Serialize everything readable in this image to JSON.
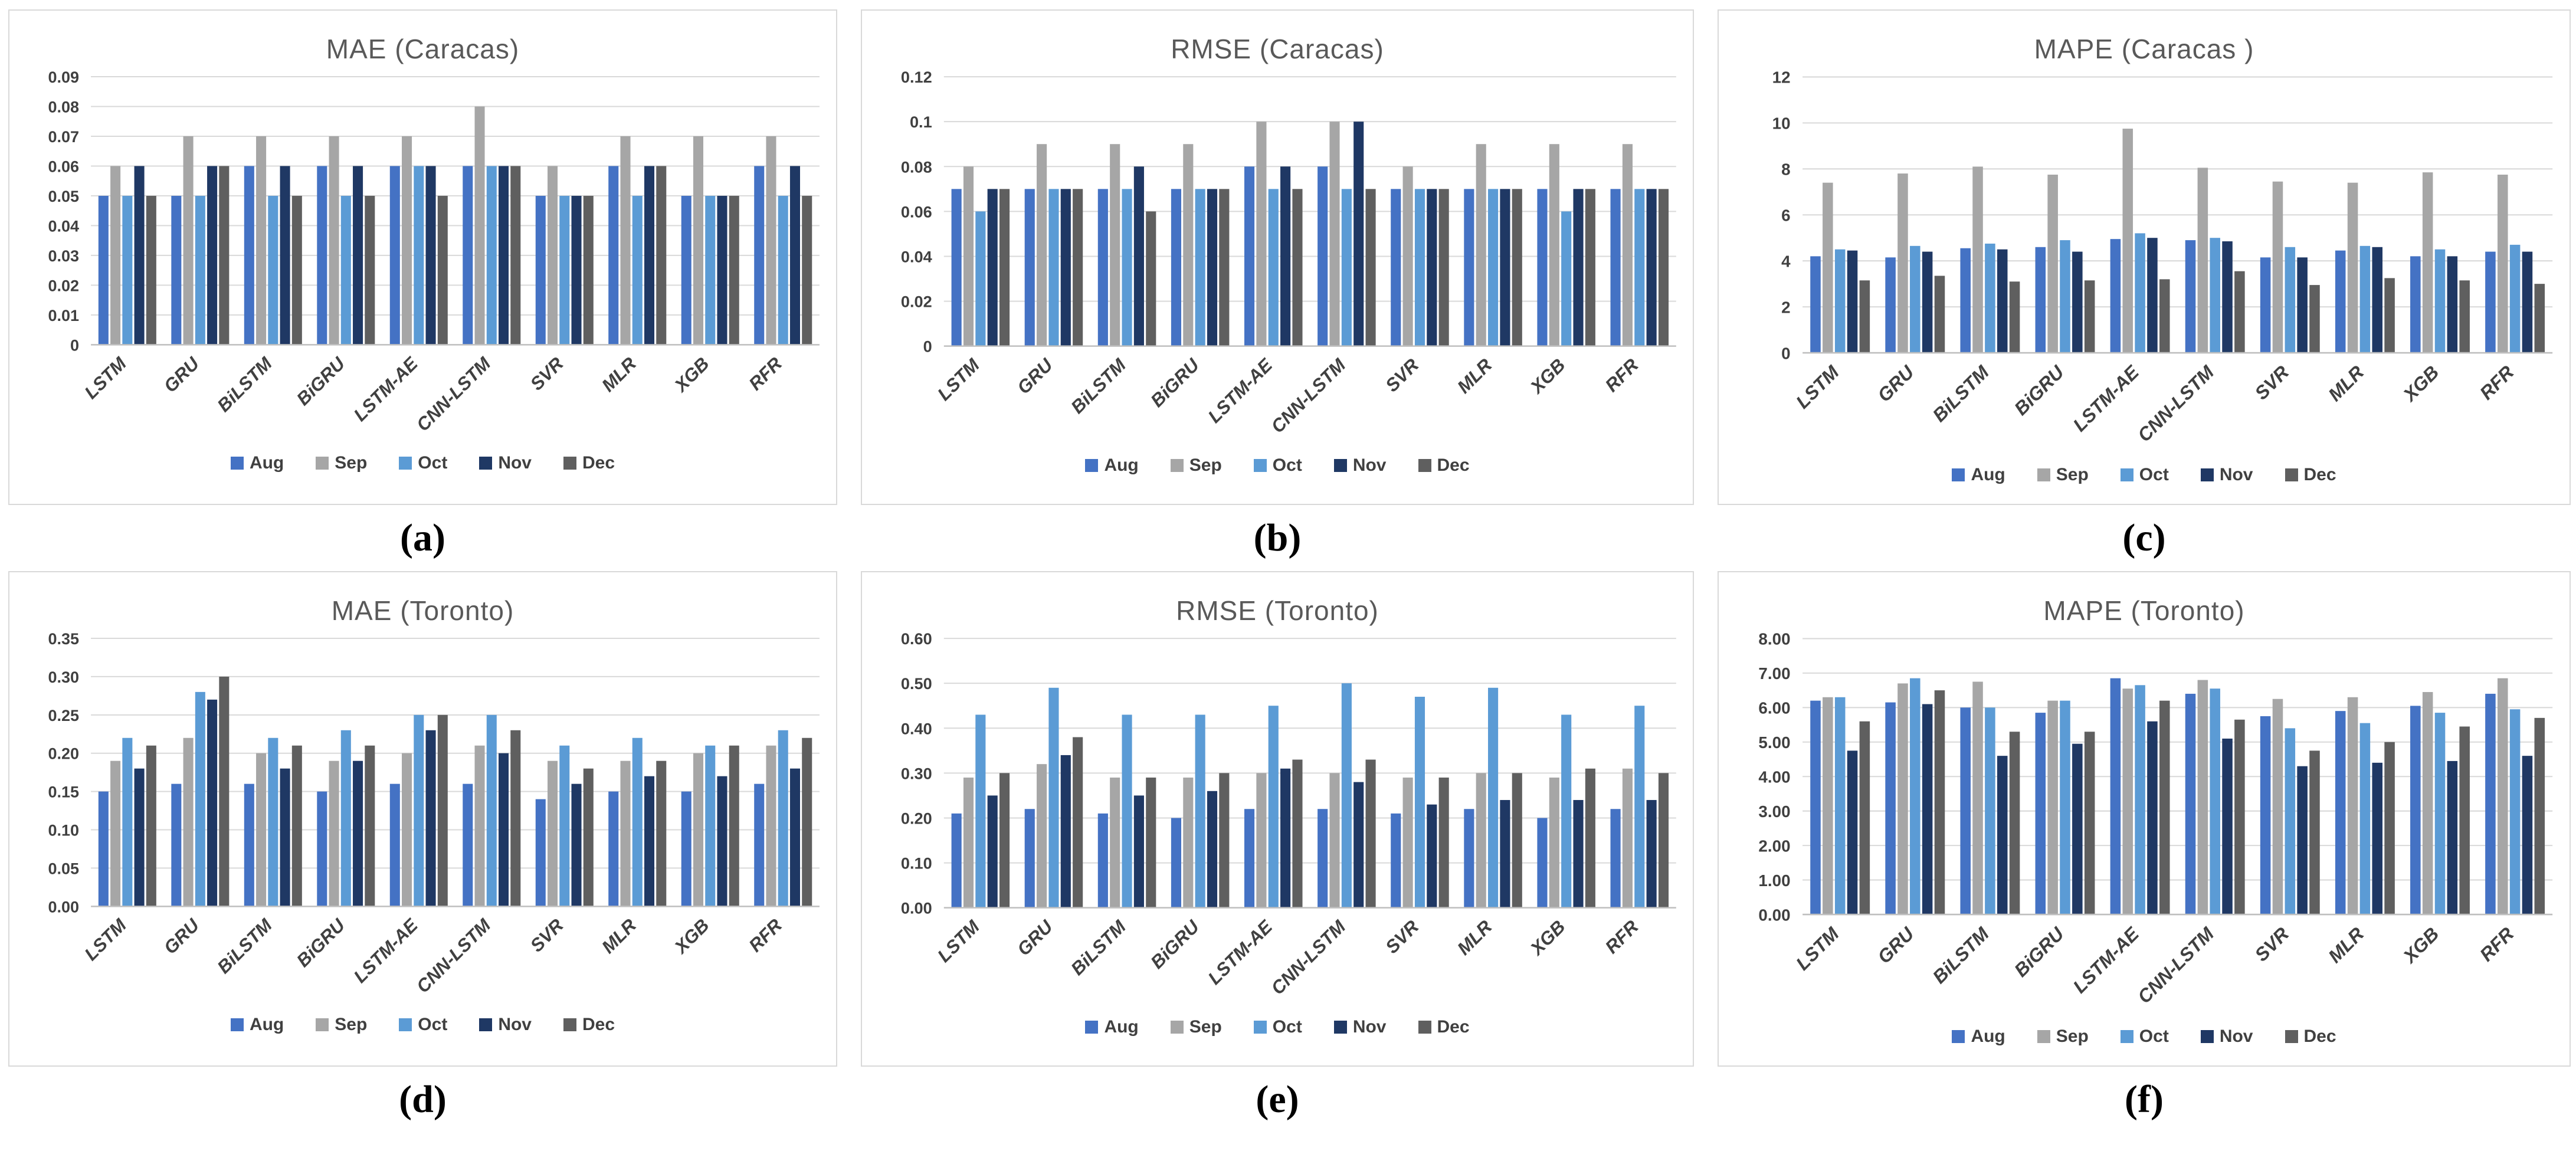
{
  "palette": {
    "Aug": "#4472C4",
    "Sep": "#A6A6A6",
    "Oct": "#5B9BD5",
    "Nov": "#1F3864",
    "Dec": "#5F5F5F"
  },
  "style": {
    "gridline_color": "#D9D9D9",
    "axis_color": "#BFBFBF",
    "title_color": "#595959",
    "label_color": "#404040",
    "border_color": "#D9D9D9"
  },
  "chart_data": [
    {
      "id": "mae-caracas",
      "type": "bar",
      "title": "MAE (Caracas)",
      "caption": "(a)",
      "xlabel": "",
      "ylabel": "",
      "grid": true,
      "legend_position": "bottom",
      "legend": [
        "Aug",
        "Sep",
        "Oct",
        "Nov",
        "Dec"
      ],
      "categories": [
        "LSTM",
        "GRU",
        "BiLSTM",
        "BiGRU",
        "LSTM-AE",
        "CNN-LSTM",
        "SVR",
        "MLR",
        "XGB",
        "RFR"
      ],
      "ylim": [
        0,
        0.09
      ],
      "ytick_values": [
        0,
        0.01,
        0.02,
        0.03,
        0.04,
        0.05,
        0.06,
        0.07,
        0.08,
        0.09
      ],
      "ytick_labels": [
        "0",
        "0.01",
        "0.02",
        "0.03",
        "0.04",
        "0.05",
        "0.06",
        "0.07",
        "0.08",
        "0.09"
      ],
      "series": [
        {
          "name": "Aug",
          "values": [
            0.05,
            0.05,
            0.06,
            0.06,
            0.06,
            0.06,
            0.05,
            0.06,
            0.05,
            0.06
          ]
        },
        {
          "name": "Sep",
          "values": [
            0.06,
            0.07,
            0.07,
            0.07,
            0.07,
            0.08,
            0.06,
            0.07,
            0.07,
            0.07
          ]
        },
        {
          "name": "Oct",
          "values": [
            0.05,
            0.05,
            0.05,
            0.05,
            0.06,
            0.06,
            0.05,
            0.05,
            0.05,
            0.05
          ]
        },
        {
          "name": "Nov",
          "values": [
            0.06,
            0.06,
            0.06,
            0.06,
            0.06,
            0.06,
            0.05,
            0.06,
            0.05,
            0.06
          ]
        },
        {
          "name": "Dec",
          "values": [
            0.05,
            0.06,
            0.05,
            0.05,
            0.05,
            0.06,
            0.05,
            0.06,
            0.05,
            0.05
          ]
        }
      ]
    },
    {
      "id": "rmse-caracas",
      "type": "bar",
      "title": "RMSE (Caracas)",
      "caption": "(b)",
      "xlabel": "",
      "ylabel": "",
      "grid": true,
      "legend_position": "bottom",
      "legend": [
        "Aug",
        "Sep",
        "Oct",
        "Nov",
        "Dec"
      ],
      "categories": [
        "LSTM",
        "GRU",
        "BiLSTM",
        "BiGRU",
        "LSTM-AE",
        "CNN-LSTM",
        "SVR",
        "MLR",
        "XGB",
        "RFR"
      ],
      "ylim": [
        0,
        0.12
      ],
      "ytick_values": [
        0,
        0.02,
        0.04,
        0.06,
        0.08,
        0.1,
        0.12
      ],
      "ytick_labels": [
        "0",
        "0.02",
        "0.04",
        "0.06",
        "0.08",
        "0.1",
        "0.12"
      ],
      "series": [
        {
          "name": "Aug",
          "values": [
            0.07,
            0.07,
            0.07,
            0.07,
            0.08,
            0.08,
            0.07,
            0.07,
            0.07,
            0.07
          ]
        },
        {
          "name": "Sep",
          "values": [
            0.08,
            0.09,
            0.09,
            0.09,
            0.1,
            0.1,
            0.08,
            0.09,
            0.09,
            0.09
          ]
        },
        {
          "name": "Oct",
          "values": [
            0.06,
            0.07,
            0.07,
            0.07,
            0.07,
            0.07,
            0.07,
            0.07,
            0.06,
            0.07
          ]
        },
        {
          "name": "Nov",
          "values": [
            0.07,
            0.07,
            0.08,
            0.07,
            0.08,
            0.1,
            0.07,
            0.07,
            0.07,
            0.07
          ]
        },
        {
          "name": "Dec",
          "values": [
            0.07,
            0.07,
            0.06,
            0.07,
            0.07,
            0.07,
            0.07,
            0.07,
            0.07,
            0.07
          ]
        }
      ]
    },
    {
      "id": "mape-caracas",
      "type": "bar",
      "title": "MAPE (Caracas )",
      "caption": "(c)",
      "xlabel": "",
      "ylabel": "",
      "grid": true,
      "legend_position": "bottom",
      "legend": [
        "Aug",
        "Sep",
        "Oct",
        "Nov",
        "Dec"
      ],
      "categories": [
        "LSTM",
        "GRU",
        "BiLSTM",
        "BiGRU",
        "LSTM-AE",
        "CNN-LSTM",
        "SVR",
        "MLR",
        "XGB",
        "RFR"
      ],
      "ylim": [
        0,
        12
      ],
      "ytick_values": [
        0,
        2,
        4,
        6,
        8,
        10,
        12
      ],
      "ytick_labels": [
        "0",
        "2",
        "4",
        "6",
        "8",
        "10",
        "12"
      ],
      "series": [
        {
          "name": "Aug",
          "values": [
            4.2,
            4.15,
            4.55,
            4.6,
            4.95,
            4.9,
            4.15,
            4.45,
            4.2,
            4.4
          ]
        },
        {
          "name": "Sep",
          "values": [
            7.4,
            7.8,
            8.1,
            7.75,
            9.75,
            8.05,
            7.45,
            7.4,
            7.85,
            7.75
          ]
        },
        {
          "name": "Oct",
          "values": [
            4.5,
            4.65,
            4.75,
            4.9,
            5.2,
            5.0,
            4.6,
            4.65,
            4.5,
            4.7
          ]
        },
        {
          "name": "Nov",
          "values": [
            4.45,
            4.4,
            4.5,
            4.4,
            5.0,
            4.85,
            4.15,
            4.6,
            4.2,
            4.4
          ]
        },
        {
          "name": "Dec",
          "values": [
            3.15,
            3.35,
            3.1,
            3.15,
            3.2,
            3.55,
            2.95,
            3.25,
            3.15,
            3.0
          ]
        }
      ]
    },
    {
      "id": "mae-toronto",
      "type": "bar",
      "title": "MAE (Toronto)",
      "caption": "(d)",
      "xlabel": "",
      "ylabel": "",
      "grid": true,
      "legend_position": "bottom",
      "legend": [
        "Aug",
        "Sep",
        "Oct",
        "Nov",
        "Dec"
      ],
      "categories": [
        "LSTM",
        "GRU",
        "BiLSTM",
        "BiGRU",
        "LSTM-AE",
        "CNN-LSTM",
        "SVR",
        "MLR",
        "XGB",
        "RFR"
      ],
      "ylim": [
        0,
        0.35
      ],
      "ytick_values": [
        0,
        0.05,
        0.1,
        0.15,
        0.2,
        0.25,
        0.3,
        0.35
      ],
      "ytick_labels": [
        "0.00",
        "0.05",
        "0.10",
        "0.15",
        "0.20",
        "0.25",
        "0.30",
        "0.35"
      ],
      "series": [
        {
          "name": "Aug",
          "values": [
            0.15,
            0.16,
            0.16,
            0.15,
            0.16,
            0.16,
            0.14,
            0.15,
            0.15,
            0.16
          ]
        },
        {
          "name": "Sep",
          "values": [
            0.19,
            0.22,
            0.2,
            0.19,
            0.2,
            0.21,
            0.19,
            0.19,
            0.2,
            0.21
          ]
        },
        {
          "name": "Oct",
          "values": [
            0.22,
            0.28,
            0.22,
            0.23,
            0.25,
            0.25,
            0.21,
            0.22,
            0.21,
            0.23
          ]
        },
        {
          "name": "Nov",
          "values": [
            0.18,
            0.27,
            0.18,
            0.19,
            0.23,
            0.2,
            0.16,
            0.17,
            0.17,
            0.18
          ]
        },
        {
          "name": "Dec",
          "values": [
            0.21,
            0.3,
            0.21,
            0.21,
            0.25,
            0.23,
            0.18,
            0.19,
            0.21,
            0.22
          ]
        }
      ]
    },
    {
      "id": "rmse-toronto",
      "type": "bar",
      "title": "RMSE (Toronto)",
      "caption": "(e)",
      "xlabel": "",
      "ylabel": "",
      "grid": true,
      "legend_position": "bottom",
      "legend": [
        "Aug",
        "Sep",
        "Oct",
        "Nov",
        "Dec"
      ],
      "categories": [
        "LSTM",
        "GRU",
        "BiLSTM",
        "BiGRU",
        "LSTM-AE",
        "CNN-LSTM",
        "SVR",
        "MLR",
        "XGB",
        "RFR"
      ],
      "ylim": [
        0,
        0.6
      ],
      "ytick_values": [
        0,
        0.1,
        0.2,
        0.3,
        0.4,
        0.5,
        0.6
      ],
      "ytick_labels": [
        "0.00",
        "0.10",
        "0.20",
        "0.30",
        "0.40",
        "0.50",
        "0.60"
      ],
      "series": [
        {
          "name": "Aug",
          "values": [
            0.21,
            0.22,
            0.21,
            0.2,
            0.22,
            0.22,
            0.21,
            0.22,
            0.2,
            0.22
          ]
        },
        {
          "name": "Sep",
          "values": [
            0.29,
            0.32,
            0.29,
            0.29,
            0.3,
            0.3,
            0.29,
            0.3,
            0.29,
            0.31
          ]
        },
        {
          "name": "Oct",
          "values": [
            0.43,
            0.49,
            0.43,
            0.43,
            0.45,
            0.5,
            0.47,
            0.49,
            0.43,
            0.45
          ]
        },
        {
          "name": "Nov",
          "values": [
            0.25,
            0.34,
            0.25,
            0.26,
            0.31,
            0.28,
            0.23,
            0.24,
            0.24,
            0.24
          ]
        },
        {
          "name": "Dec",
          "values": [
            0.3,
            0.38,
            0.29,
            0.3,
            0.33,
            0.33,
            0.29,
            0.3,
            0.31,
            0.3
          ]
        }
      ]
    },
    {
      "id": "mape-toronto",
      "type": "bar",
      "title": "MAPE (Toronto)",
      "caption": "(f)",
      "xlabel": "",
      "ylabel": "",
      "grid": true,
      "legend_position": "bottom",
      "legend": [
        "Aug",
        "Sep",
        "Oct",
        "Nov",
        "Dec"
      ],
      "categories": [
        "LSTM",
        "GRU",
        "BiLSTM",
        "BiGRU",
        "LSTM-AE",
        "CNN-LSTM",
        "SVR",
        "MLR",
        "XGB",
        "RFR"
      ],
      "ylim": [
        0,
        8
      ],
      "ytick_values": [
        0,
        1,
        2,
        3,
        4,
        5,
        6,
        7,
        8
      ],
      "ytick_labels": [
        "0.00",
        "1.00",
        "2.00",
        "3.00",
        "4.00",
        "5.00",
        "6.00",
        "7.00",
        "8.00"
      ],
      "series": [
        {
          "name": "Aug",
          "values": [
            6.2,
            6.15,
            6.0,
            5.85,
            6.85,
            6.4,
            5.75,
            5.9,
            6.05,
            6.4
          ]
        },
        {
          "name": "Sep",
          "values": [
            6.3,
            6.7,
            6.75,
            6.2,
            6.55,
            6.8,
            6.25,
            6.3,
            6.45,
            6.85
          ]
        },
        {
          "name": "Oct",
          "values": [
            6.3,
            6.85,
            6.0,
            6.2,
            6.65,
            6.55,
            5.4,
            5.55,
            5.85,
            5.95
          ]
        },
        {
          "name": "Nov",
          "values": [
            4.75,
            6.1,
            4.6,
            4.95,
            5.6,
            5.1,
            4.3,
            4.4,
            4.45,
            4.6
          ]
        },
        {
          "name": "Dec",
          "values": [
            5.6,
            6.5,
            5.3,
            5.3,
            6.2,
            5.65,
            4.75,
            5.0,
            5.45,
            5.7
          ]
        }
      ]
    }
  ]
}
